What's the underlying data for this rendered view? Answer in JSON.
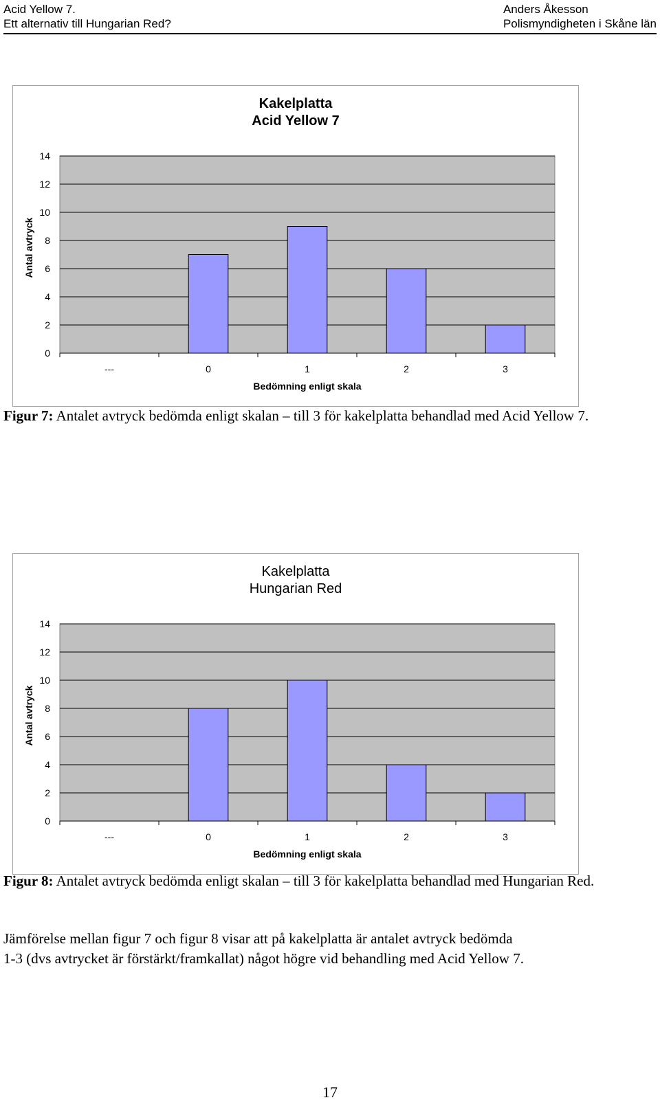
{
  "header": {
    "left_line1": "Acid Yellow 7.",
    "left_line2": "Ett alternativ till Hungarian Red?",
    "right_line1": "Anders Åkesson",
    "right_line2": "Polismyndigheten i Skåne län"
  },
  "chart_data": [
    {
      "type": "bar",
      "title_line1": "Kakelplatta",
      "title_line2": "Acid Yellow 7",
      "xlabel": "Bedömning enligt skala",
      "ylabel": "Antal avtryck",
      "categories": [
        "---",
        "0",
        "1",
        "2",
        "3"
      ],
      "values": [
        0,
        7,
        9,
        6,
        2
      ],
      "ylim": [
        0,
        14
      ],
      "yticks": [
        "0",
        "2",
        "4",
        "6",
        "8",
        "10",
        "12",
        "14"
      ],
      "grid": true,
      "bar_color": "#9999ff",
      "plot_bg": "#c0c0c0"
    },
    {
      "type": "bar",
      "title_line1": "Kakelplatta",
      "title_line2": "Hungarian Red",
      "xlabel": "Bedömning enligt skala",
      "ylabel": "Antal avtryck",
      "categories": [
        "---",
        "0",
        "1",
        "2",
        "3"
      ],
      "values": [
        0,
        8,
        10,
        4,
        2
      ],
      "ylim": [
        0,
        14
      ],
      "yticks": [
        "0",
        "2",
        "4",
        "6",
        "8",
        "10",
        "12",
        "14"
      ],
      "grid": true,
      "bar_color": "#9999ff",
      "plot_bg": "#c0c0c0"
    }
  ],
  "captions": {
    "fig7_label": "Figur 7:",
    "fig7_text": " Antalet avtryck bedömda enligt skalan – till 3 för kakelplatta behandlad med Acid Yellow 7.",
    "fig8_label": "Figur 8:",
    "fig8_text": " Antalet avtryck bedömda enligt skalan – till 3 för kakelplatta behandlad med Hungarian Red."
  },
  "paragraph": {
    "line1": "Jämförelse mellan figur 7 och figur 8 visar att på kakelplatta är antalet avtryck bedömda",
    "line2": "1-3 (dvs avtrycket är förstärkt/framkallat) något högre vid behandling med Acid Yellow 7."
  },
  "page_number": "17"
}
